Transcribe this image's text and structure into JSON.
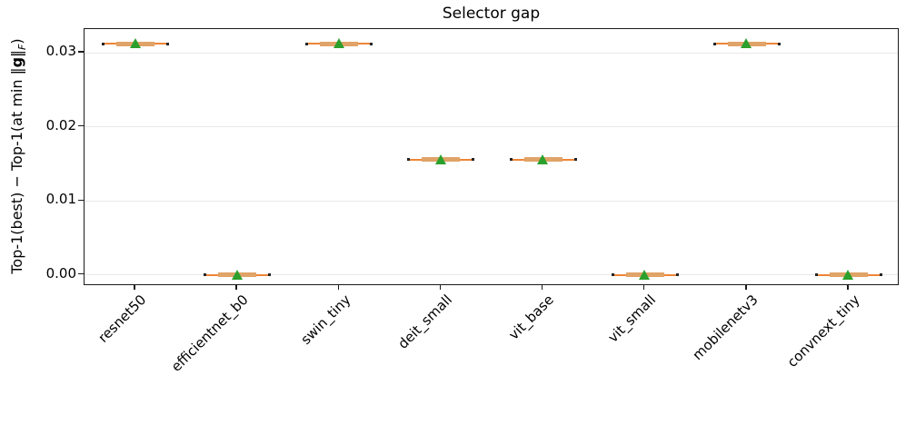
{
  "figure": {
    "title": "Selector gap",
    "ylabel_parts": {
      "prefix": "Top-1(best) − Top-1(at min ",
      "norm_open": "‖",
      "g": "g",
      "norm_close": "‖",
      "subscript": "F",
      "suffix": ")"
    }
  },
  "chart_data": {
    "type": "boxplot",
    "title": "Selector gap",
    "ylabel": "Top-1(best) − Top-1(at min ‖g‖F)",
    "xlabel": "",
    "categories": [
      "resnet50",
      "efficientnet_b0",
      "swin_tiny",
      "deit_small",
      "vit_base",
      "vit_small",
      "mobilenetv3",
      "convnext_tiny"
    ],
    "values": [
      0.0312,
      0.0,
      0.0312,
      0.0156,
      0.0156,
      0.0,
      0.0312,
      0.0
    ],
    "means": [
      0.0312,
      0.0,
      0.0312,
      0.0156,
      0.0156,
      0.0,
      0.0312,
      0.0
    ],
    "yticks": [
      {
        "label": "0.00",
        "value": 0.0
      },
      {
        "label": "0.01",
        "value": 0.01
      },
      {
        "label": "0.02",
        "value": 0.02
      },
      {
        "label": "0.03",
        "value": 0.03
      }
    ],
    "ylim": [
      -0.0015,
      0.0332
    ],
    "grid": "horizontal",
    "legend": "none",
    "colors": {
      "median_line": "#ef8536",
      "box_line": "#e0a368",
      "cap": "#262626",
      "mean_marker": "#2ca02c",
      "gridline": "#e8e8e8",
      "spine": "#1a1a1a"
    }
  }
}
